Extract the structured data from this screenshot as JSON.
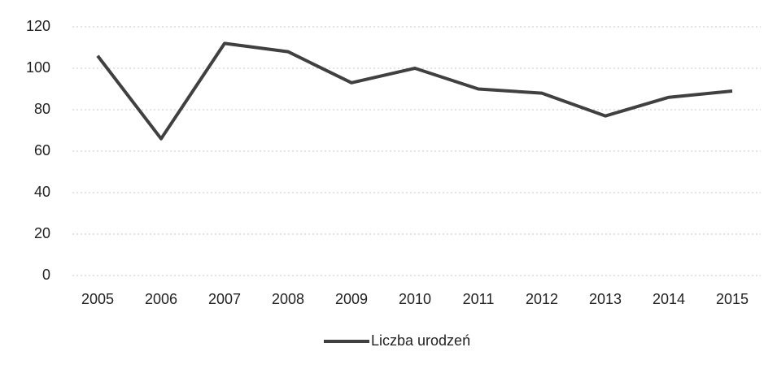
{
  "chart_data": {
    "type": "line",
    "categories": [
      "2005",
      "2006",
      "2007",
      "2008",
      "2009",
      "2010",
      "2011",
      "2012",
      "2013",
      "2014",
      "2015"
    ],
    "series": [
      {
        "name": "Liczba urodzeń",
        "color": "#404040",
        "values": [
          106,
          66,
          112,
          108,
          93,
          100,
          90,
          88,
          77,
          86,
          89
        ]
      }
    ],
    "ylim": [
      0,
      120
    ],
    "yticks": [
      0,
      20,
      40,
      60,
      80,
      100,
      120
    ],
    "grid": true,
    "legend": "bottom"
  }
}
